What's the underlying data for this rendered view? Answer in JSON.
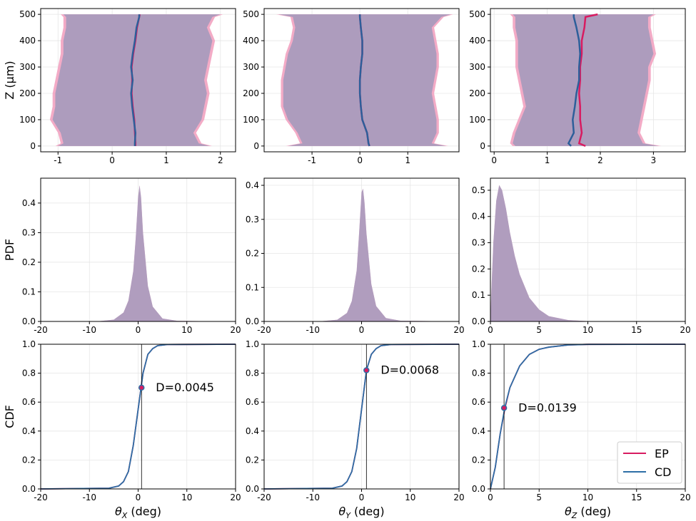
{
  "chart_data": [
    {
      "type": "profile",
      "ylabel": "Z (μm)",
      "z": [
        0,
        10,
        50,
        100,
        150,
        200,
        250,
        300,
        350,
        400,
        450,
        490,
        500
      ],
      "xlim": [
        -1.32,
        2.28
      ],
      "xticks": [
        -1,
        0,
        1,
        2
      ],
      "ylim": [
        -22,
        522
      ],
      "yticks": [
        0,
        100,
        200,
        300,
        400,
        500
      ],
      "grid": true,
      "series": [
        {
          "color": "#d81b60",
          "band_color": "#f2a7c3",
          "values": [
            0.43,
            0.43,
            0.42,
            0.41,
            0.38,
            0.36,
            0.37,
            0.36,
            0.39,
            0.43,
            0.46,
            0.5,
            0.51
          ],
          "lower": [
            -1.05,
            -0.95,
            -1.0,
            -1.15,
            -1.1,
            -1.1,
            -1.05,
            -1.0,
            -0.95,
            -0.95,
            -0.9,
            -0.9,
            -0.95
          ],
          "upper": [
            1.85,
            1.65,
            1.55,
            1.7,
            1.75,
            1.8,
            1.75,
            1.8,
            1.85,
            1.9,
            1.8,
            1.9,
            2.05
          ]
        },
        {
          "color": "#2d5f9a",
          "band_color": "#a99bbd",
          "values": [
            0.42,
            0.42,
            0.43,
            0.4,
            0.37,
            0.35,
            0.38,
            0.35,
            0.38,
            0.42,
            0.45,
            0.5,
            0.5
          ],
          "lower": [
            -1.0,
            -0.9,
            -0.95,
            -1.1,
            -1.05,
            -1.05,
            -1.0,
            -0.95,
            -0.9,
            -0.9,
            -0.85,
            -0.85,
            -0.9
          ],
          "upper": [
            1.8,
            1.6,
            1.5,
            1.65,
            1.7,
            1.75,
            1.7,
            1.75,
            1.8,
            1.85,
            1.75,
            1.85,
            2.0
          ]
        }
      ]
    },
    {
      "type": "profile",
      "z": [
        0,
        10,
        50,
        100,
        150,
        200,
        250,
        300,
        350,
        400,
        450,
        490,
        500
      ],
      "xlim": [
        -2.0,
        2.07
      ],
      "xticks": [
        -1,
        0,
        1
      ],
      "ylim": [
        -22,
        522
      ],
      "yticks": [
        0,
        100,
        200,
        300,
        400,
        500
      ],
      "grid": true,
      "series": [
        {
          "color": "#d81b60",
          "band_color": "#f2a7c3",
          "values": [
            0.2,
            0.18,
            0.15,
            0.05,
            0.02,
            0.0,
            0.0,
            0.02,
            0.05,
            0.05,
            0.02,
            0.0,
            0.0
          ],
          "lower": [
            -1.55,
            -1.25,
            -1.35,
            -1.55,
            -1.65,
            -1.65,
            -1.65,
            -1.6,
            -1.55,
            -1.45,
            -1.4,
            -1.45,
            -1.75
          ],
          "upper": [
            1.85,
            1.55,
            1.65,
            1.65,
            1.6,
            1.55,
            1.6,
            1.65,
            1.65,
            1.6,
            1.55,
            1.75,
            1.95
          ]
        },
        {
          "color": "#2d5f9a",
          "band_color": "#a99bbd",
          "values": [
            0.2,
            0.18,
            0.15,
            0.05,
            0.02,
            0.0,
            0.0,
            0.02,
            0.05,
            0.05,
            0.02,
            0.0,
            0.0
          ],
          "lower": [
            -1.5,
            -1.2,
            -1.3,
            -1.5,
            -1.6,
            -1.6,
            -1.6,
            -1.55,
            -1.5,
            -1.4,
            -1.35,
            -1.4,
            -1.7
          ],
          "upper": [
            1.8,
            1.5,
            1.6,
            1.6,
            1.55,
            1.5,
            1.55,
            1.6,
            1.6,
            1.55,
            1.5,
            1.7,
            1.9
          ]
        }
      ]
    },
    {
      "type": "profile",
      "z": [
        0,
        10,
        50,
        100,
        150,
        200,
        250,
        300,
        350,
        400,
        450,
        490,
        500
      ],
      "xlim": [
        -0.07,
        3.6
      ],
      "xticks": [
        0,
        1,
        2,
        3
      ],
      "ylim": [
        -22,
        522
      ],
      "yticks": [
        0,
        100,
        200,
        300,
        400,
        500
      ],
      "grid": true,
      "series": [
        {
          "color": "#d81b60",
          "band_color": "#f2a7c3",
          "values": [
            1.72,
            1.6,
            1.65,
            1.62,
            1.62,
            1.6,
            1.62,
            1.62,
            1.65,
            1.65,
            1.7,
            1.72,
            1.95
          ],
          "lower": [
            0.35,
            0.3,
            0.35,
            0.45,
            0.55,
            0.5,
            0.45,
            0.4,
            0.4,
            0.4,
            0.35,
            0.35,
            0.3
          ],
          "upper": [
            3.15,
            2.85,
            2.75,
            2.8,
            2.85,
            2.9,
            2.95,
            2.95,
            3.05,
            3.0,
            2.95,
            2.95,
            3.05
          ]
        },
        {
          "color": "#2d5f9a",
          "band_color": "#a99bbd",
          "values": [
            1.45,
            1.4,
            1.5,
            1.48,
            1.52,
            1.55,
            1.6,
            1.6,
            1.62,
            1.6,
            1.55,
            1.5,
            1.5
          ],
          "lower": [
            0.4,
            0.35,
            0.4,
            0.5,
            0.6,
            0.55,
            0.5,
            0.45,
            0.45,
            0.45,
            0.4,
            0.4,
            0.35
          ],
          "upper": [
            3.1,
            2.8,
            2.7,
            2.75,
            2.8,
            2.85,
            2.9,
            2.9,
            3.0,
            2.95,
            2.9,
            2.9,
            3.0
          ]
        }
      ]
    },
    {
      "type": "area",
      "ylabel": "PDF",
      "x": [
        -20,
        -8,
        -5,
        -3,
        -2,
        -1,
        -0.5,
        0,
        0.3,
        0.6,
        1,
        2,
        3,
        5,
        8,
        20
      ],
      "xlim": [
        -20,
        20
      ],
      "xticks": [
        -20,
        -10,
        0,
        10,
        20
      ],
      "ylim": [
        0,
        0.484
      ],
      "yticks": [
        {
          "value": 0,
          "label": "0.0"
        },
        0.1,
        0.2,
        0.3,
        0.4
      ],
      "grid": true,
      "series": [
        {
          "color": "#f2a7c3",
          "values": [
            0,
            0.001,
            0.006,
            0.03,
            0.07,
            0.17,
            0.28,
            0.42,
            0.46,
            0.42,
            0.3,
            0.12,
            0.05,
            0.01,
            0.002,
            0
          ]
        },
        {
          "color": "#a99bbd",
          "values": [
            0,
            0.001,
            0.006,
            0.03,
            0.07,
            0.17,
            0.28,
            0.42,
            0.46,
            0.42,
            0.3,
            0.12,
            0.05,
            0.01,
            0.002,
            0
          ]
        }
      ]
    },
    {
      "type": "area",
      "x": [
        -20,
        -8,
        -5,
        -3,
        -2,
        -1,
        -0.5,
        0,
        0.3,
        0.6,
        1,
        2,
        3,
        5,
        8,
        20
      ],
      "xlim": [
        -20,
        20
      ],
      "xticks": [
        -20,
        -10,
        0,
        10,
        20
      ],
      "ylim": [
        0,
        0.421
      ],
      "yticks": [
        {
          "value": 0,
          "label": "0.0"
        },
        0.1,
        0.2,
        0.3,
        0.4
      ],
      "grid": true,
      "series": [
        {
          "color": "#f2a7c3",
          "values": [
            0,
            0.001,
            0.005,
            0.025,
            0.06,
            0.15,
            0.26,
            0.38,
            0.39,
            0.35,
            0.26,
            0.11,
            0.045,
            0.01,
            0.002,
            0
          ]
        },
        {
          "color": "#a99bbd",
          "values": [
            0,
            0.001,
            0.005,
            0.025,
            0.06,
            0.15,
            0.26,
            0.38,
            0.39,
            0.35,
            0.26,
            0.11,
            0.045,
            0.01,
            0.002,
            0
          ]
        }
      ]
    },
    {
      "type": "area",
      "x": [
        0,
        0.1,
        0.3,
        0.6,
        0.9,
        1.2,
        1.6,
        2,
        2.5,
        3,
        4,
        5,
        6,
        8,
        10,
        20
      ],
      "xlim": [
        0,
        20
      ],
      "xticks": [
        0,
        5,
        10,
        15,
        20
      ],
      "ylim": [
        0,
        0.546
      ],
      "yticks": [
        {
          "value": 0,
          "label": "0.0"
        },
        0.1,
        0.2,
        0.3,
        0.4,
        0.5
      ],
      "grid": true,
      "series": [
        {
          "color": "#f2a7c3",
          "values": [
            0,
            0.12,
            0.3,
            0.46,
            0.52,
            0.5,
            0.43,
            0.34,
            0.25,
            0.18,
            0.09,
            0.045,
            0.02,
            0.005,
            0.001,
            0
          ]
        },
        {
          "color": "#a99bbd",
          "values": [
            0,
            0.12,
            0.3,
            0.46,
            0.52,
            0.5,
            0.43,
            0.34,
            0.25,
            0.18,
            0.09,
            0.045,
            0.02,
            0.005,
            0.001,
            0
          ]
        }
      ]
    },
    {
      "type": "line",
      "ylabel": "CDF",
      "xlabel_symbol": "θ",
      "xlabel_sub": "X",
      "xlabel_unit": "(deg)",
      "x": [
        -20,
        -6,
        -4,
        -3,
        -2,
        -1,
        0,
        1,
        2,
        3,
        4,
        6,
        20
      ],
      "xlim": [
        -20,
        20
      ],
      "xticks": [
        -20,
        -10,
        0,
        10,
        20
      ],
      "ylim": [
        0,
        1
      ],
      "yticks": [
        {
          "value": 0,
          "label": "0.0"
        },
        0.2,
        0.4,
        0.6,
        0.8,
        {
          "value": 1,
          "label": "1.0"
        }
      ],
      "grid": true,
      "marker": {
        "x": 0.7,
        "y": 0.7,
        "label": "D=0.0045"
      },
      "series": [
        {
          "color": "#d81b60",
          "values": [
            0,
            0.005,
            0.02,
            0.05,
            0.12,
            0.3,
            0.55,
            0.8,
            0.93,
            0.97,
            0.99,
            0.998,
            1
          ]
        },
        {
          "color": "#2d6fa6",
          "values": [
            0,
            0.005,
            0.02,
            0.05,
            0.12,
            0.3,
            0.55,
            0.8,
            0.93,
            0.97,
            0.99,
            0.998,
            1
          ]
        }
      ]
    },
    {
      "type": "line",
      "xlabel_symbol": "θ",
      "xlabel_sub": "Y",
      "xlabel_unit": "(deg)",
      "x": [
        -20,
        -6,
        -4,
        -3,
        -2,
        -1,
        0,
        1,
        2,
        3,
        4,
        6,
        20
      ],
      "xlim": [
        -20,
        20
      ],
      "xticks": [
        -20,
        -10,
        0,
        10,
        20
      ],
      "ylim": [
        0,
        1
      ],
      "yticks": [
        {
          "value": 0,
          "label": "0.0"
        },
        0.2,
        0.4,
        0.6,
        0.8,
        {
          "value": 1,
          "label": "1.0"
        }
      ],
      "grid": true,
      "marker": {
        "x": 1.0,
        "y": 0.82,
        "label": "D=0.0068"
      },
      "series": [
        {
          "color": "#d81b60",
          "values": [
            0,
            0.005,
            0.02,
            0.05,
            0.12,
            0.28,
            0.55,
            0.82,
            0.93,
            0.97,
            0.99,
            0.998,
            1
          ]
        },
        {
          "color": "#2d6fa6",
          "values": [
            0,
            0.005,
            0.02,
            0.05,
            0.12,
            0.28,
            0.55,
            0.82,
            0.93,
            0.97,
            0.99,
            0.998,
            1
          ]
        }
      ]
    },
    {
      "type": "line",
      "xlabel_symbol": "θ",
      "xlabel_sub": "Z",
      "xlabel_unit": "(deg)",
      "x": [
        0,
        0.5,
        1,
        1.5,
        2,
        3,
        4,
        5,
        6,
        8,
        10,
        20
      ],
      "xlim": [
        0,
        20
      ],
      "xticks": [
        0,
        5,
        10,
        15,
        20
      ],
      "ylim": [
        0,
        1
      ],
      "yticks": [
        {
          "value": 0,
          "label": "0.0"
        },
        0.2,
        0.4,
        0.6,
        0.8,
        {
          "value": 1,
          "label": "1.0"
        }
      ],
      "grid": true,
      "marker": {
        "x": 1.4,
        "y": 0.56,
        "label": "D=0.0139"
      },
      "legend": "lower right",
      "series": [
        {
          "name": "EP",
          "color": "#d81b60",
          "values": [
            0,
            0.15,
            0.38,
            0.56,
            0.7,
            0.85,
            0.93,
            0.965,
            0.98,
            0.995,
            0.999,
            1
          ]
        },
        {
          "name": "CD",
          "color": "#2d6fa6",
          "values": [
            0,
            0.15,
            0.38,
            0.57,
            0.7,
            0.85,
            0.93,
            0.965,
            0.98,
            0.995,
            0.999,
            1
          ]
        }
      ]
    }
  ]
}
